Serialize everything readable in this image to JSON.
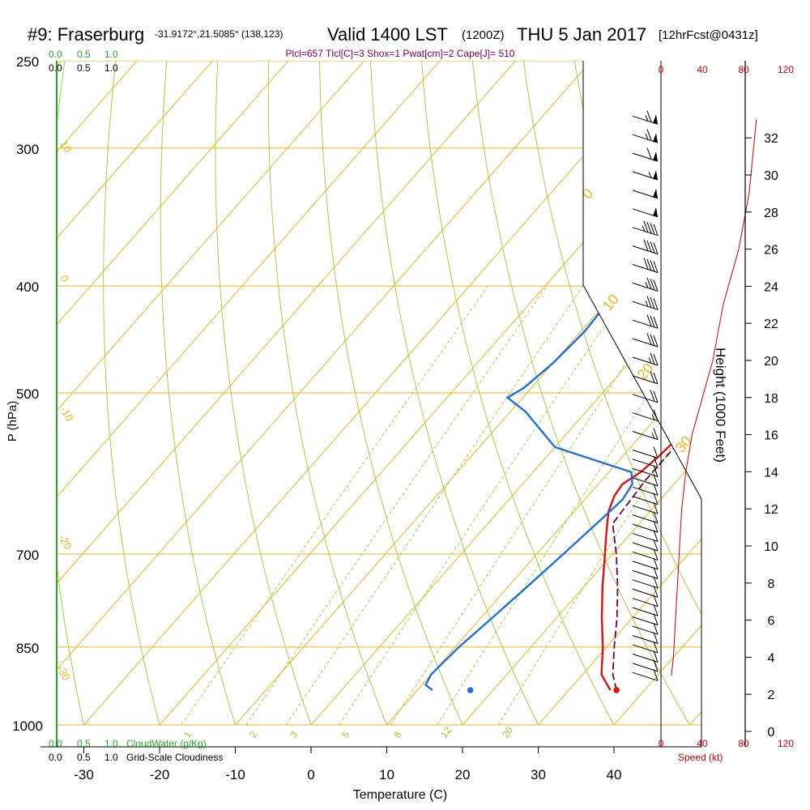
{
  "header": {
    "station": "#9: Fraserburg",
    "coords": "-31.9172°,21.5085° (138,123)",
    "valid": "Valid 1400 LST",
    "zulu": "(1200Z)",
    "date": "THU 5 Jan 2017",
    "forecast": "[12hrFcst@0431z]",
    "indices": "Plcl=657 Tlcl[C]=3 Shox=1 Pwat[cm]=2 Cape[J]= 510"
  },
  "scales": {
    "cloudwater_ticks": [
      "0.0",
      "0.5",
      "1.0"
    ],
    "cloudiness_ticks": [
      "0.0",
      "0.5",
      "1.0"
    ],
    "cloudwater_label": "CloudWater (g/Kg)",
    "cloudiness_label": "Grid-Scale Cloudiness",
    "speed_ticks": [
      "0",
      "40",
      "80",
      "120"
    ],
    "speed_label": "Speed (kt)"
  },
  "colors": {
    "isotherm": "#f2b31a",
    "dry_adiabat": "#9acd32",
    "mixing_ratio": "#9acd32",
    "temperature": "#e01010",
    "dewpoint": "#1e6fe0",
    "parcel": "#700040",
    "speed": "#cc0000",
    "cloudwater": "#22aa22",
    "indices": "#8b004b"
  },
  "chart_data": {
    "type": "skew-t",
    "xlabel": "Temperature (C)",
    "ylabel": "P (hPa)",
    "y2label": "Height (1000 Feet)",
    "xlim": [
      -35,
      45
    ],
    "ylim_hpa": [
      1000,
      250
    ],
    "y_log_scale": true,
    "x_ticks": [
      -30,
      -20,
      -10,
      0,
      10,
      20,
      30,
      40
    ],
    "p_ticks": [
      250,
      300,
      400,
      500,
      700,
      850,
      1000
    ],
    "height_ticks_kft": [
      0,
      2,
      4,
      6,
      8,
      10,
      12,
      14,
      16,
      18,
      20,
      22,
      24,
      26,
      28,
      30,
      32
    ],
    "mixing_ratio_values": [
      1,
      2,
      3,
      5,
      8,
      12,
      20
    ],
    "theta_values": [
      -30,
      -20,
      -10,
      0,
      10,
      20,
      30
    ],
    "temperature": {
      "p": [
        930,
        915,
        900,
        850,
        800,
        750,
        700,
        680,
        660,
        640,
        620,
        605,
        590,
        570,
        545,
        530,
        500,
        460,
        420,
        380,
        350,
        330,
        300,
        275,
        262
      ],
      "t": [
        35.5,
        34,
        32.5,
        29.5,
        26,
        22.5,
        19,
        17.5,
        16,
        14.5,
        13.5,
        13.2,
        14.2,
        14.8,
        15.2,
        15,
        13.5,
        11.5,
        9,
        7.5,
        6,
        5.6,
        5.5,
        5.5,
        5.5
      ]
    },
    "dewpoint": {
      "p": [
        930,
        920,
        900,
        850,
        800,
        750,
        700,
        650,
        625,
        605,
        590,
        560,
        520,
        505,
        495,
        470,
        440,
        400,
        350,
        320,
        290,
        270,
        262
      ],
      "t": [
        12,
        10.5,
        10,
        10.5,
        11.5,
        12.5,
        13.5,
        14.5,
        15,
        14.5,
        13,
        0,
        -8,
        -12,
        -11,
        -10,
        -9.5,
        -10,
        -11,
        -12,
        -15,
        -17,
        -17.5
      ]
    },
    "parcel": {
      "p": [
        930,
        900,
        850,
        800,
        750,
        700,
        657,
        600,
        550,
        500,
        450,
        400,
        350,
        320
      ],
      "t": [
        36.3,
        34,
        31,
        28,
        24.5,
        20.5,
        16.5,
        15.8,
        15.8,
        14.5,
        12.5,
        10,
        7.5,
        5.5
      ]
    },
    "surface_temperature": {
      "p": 930,
      "t": 36.3
    },
    "surface_dewpoint": {
      "p": 930,
      "t": 17
    },
    "speed_profile": {
      "x_kt": [
        10,
        12,
        14,
        16,
        18,
        20,
        24,
        30,
        40,
        50,
        60,
        75,
        85,
        92
      ],
      "h_kft": [
        3,
        4,
        6,
        8,
        10,
        12,
        14,
        16,
        18,
        20,
        23,
        26,
        29,
        33
      ]
    },
    "wind_barbs": {
      "h_kft": [
        3,
        3.5,
        4,
        4.5,
        5,
        5.5,
        6,
        6.5,
        7,
        7.5,
        8,
        8.5,
        9,
        9.5,
        10,
        10.5,
        11,
        11.5,
        12,
        12.5,
        13,
        13.5,
        14,
        14.5,
        15,
        16,
        17,
        18,
        19,
        20,
        21,
        22,
        23,
        24,
        25,
        26,
        27,
        28,
        29,
        30,
        31,
        32,
        33
      ],
      "kt": [
        10,
        10,
        10,
        10,
        10,
        10,
        10,
        10,
        10,
        10,
        10,
        10,
        10,
        10,
        10,
        10,
        10,
        10,
        10,
        10,
        10,
        10,
        10,
        10,
        10,
        15,
        15,
        20,
        20,
        25,
        30,
        30,
        35,
        35,
        40,
        40,
        45,
        50,
        50,
        55,
        60,
        65,
        65
      ]
    }
  }
}
